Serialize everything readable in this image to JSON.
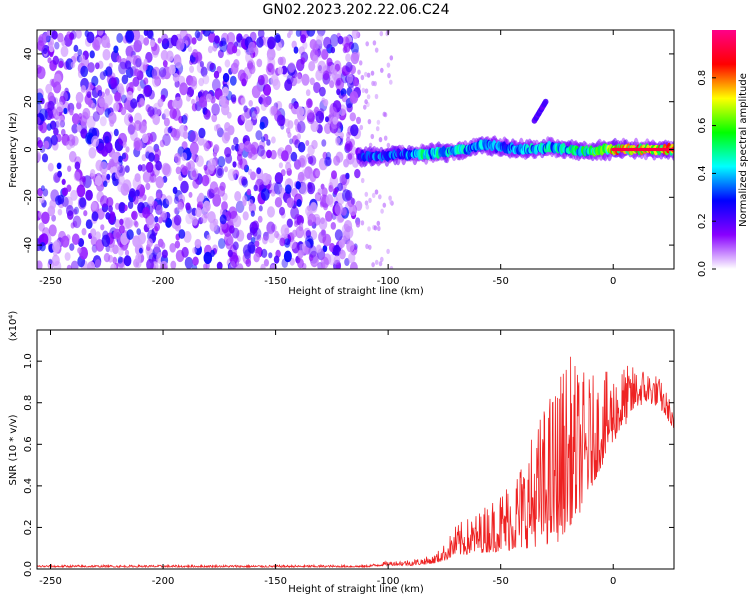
{
  "figure": {
    "title": "GN02.2023.202.22.06.C24"
  },
  "chart_data": [
    {
      "type": "heatmap",
      "name": "spectrogram",
      "xlabel": "Height of straight line (km)",
      "ylabel": "Frequency (Hz)",
      "xlim": [
        -256,
        27
      ],
      "ylim": [
        -50,
        50
      ],
      "xticks": [
        -250,
        -200,
        -150,
        -100,
        -50,
        0
      ],
      "yticks": [
        -40,
        -20,
        0,
        20,
        40
      ],
      "colorbar": {
        "label": "Normalized spectral amplitude",
        "range": [
          0,
          1
        ],
        "ticks": [
          0.0,
          0.2,
          0.4,
          0.6,
          0.8
        ],
        "colormap": [
          "#ffffff",
          "#8800ff",
          "#0000ff",
          "#00ffff",
          "#00ff00",
          "#ffff00",
          "#ff0000",
          "#ff0088"
        ]
      },
      "noise_region": {
        "x_range": [
          -256,
          -113
        ],
        "freq_range": [
          -50,
          50
        ],
        "amplitude_range": [
          0.05,
          0.3
        ]
      },
      "signal_trace": {
        "x": [
          -113,
          -105,
          -95,
          -85,
          -75,
          -65,
          -58,
          -50,
          -42,
          -35,
          -28,
          -20,
          -12,
          -5,
          0,
          10,
          20,
          27
        ],
        "freq": [
          -3,
          -3,
          -2,
          -2,
          -1,
          0,
          2,
          1,
          0,
          0,
          1,
          0,
          -1,
          0,
          0,
          0,
          0,
          0
        ],
        "amplitude": [
          0.35,
          0.4,
          0.4,
          0.55,
          0.5,
          0.5,
          0.45,
          0.4,
          0.45,
          0.5,
          0.5,
          0.55,
          0.6,
          0.7,
          0.85,
          0.9,
          0.9,
          0.85
        ]
      },
      "secondary_blob": {
        "x": [
          -35,
          -30
        ],
        "freq": [
          12,
          20
        ],
        "amplitude": 0.2
      }
    },
    {
      "type": "line",
      "name": "snr",
      "xlabel": "Height of straight line (km)",
      "ylabel": "SNR (10 * v/v)",
      "y_multiplier": "(x10⁴)",
      "xlim": [
        -256,
        27
      ],
      "ylim": [
        0,
        1.15
      ],
      "xticks": [
        -250,
        -200,
        -150,
        -100,
        -50,
        0
      ],
      "yticks": [
        0.0,
        0.2,
        0.4,
        0.6,
        0.8,
        1.0
      ],
      "line_color": "#ee2222",
      "envelope": {
        "x": [
          -256,
          -110,
          -100,
          -90,
          -80,
          -75,
          -70,
          -60,
          -50,
          -40,
          -30,
          -25,
          -20,
          -15,
          -10,
          -5,
          0,
          5,
          10,
          15,
          20,
          25,
          27
        ],
        "base": [
          0.01,
          0.01,
          0.02,
          0.02,
          0.03,
          0.05,
          0.08,
          0.1,
          0.12,
          0.15,
          0.2,
          0.22,
          0.3,
          0.35,
          0.45,
          0.55,
          0.65,
          0.72,
          0.8,
          0.82,
          0.8,
          0.72,
          0.65
        ],
        "spread": [
          0.01,
          0.01,
          0.02,
          0.03,
          0.04,
          0.08,
          0.15,
          0.2,
          0.3,
          0.45,
          0.7,
          0.8,
          0.85,
          0.7,
          0.55,
          0.45,
          0.35,
          0.3,
          0.2,
          0.17,
          0.15,
          0.12,
          0.08
        ]
      }
    }
  ]
}
